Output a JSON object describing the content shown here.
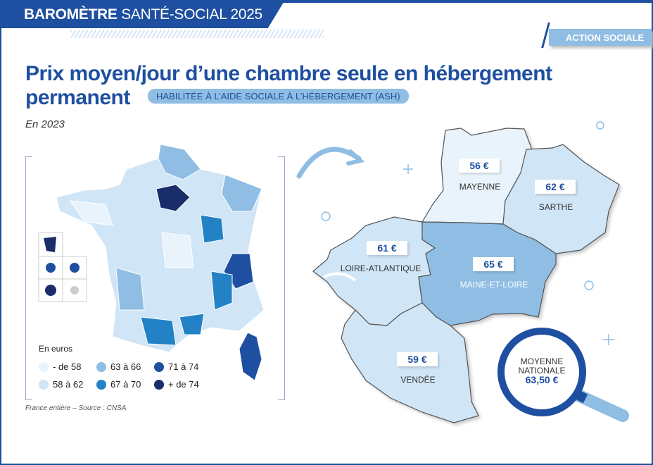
{
  "header": {
    "brand_bold": "BAROMÈTRE",
    "brand_rest": "SANTÉ-SOCIAL 2025",
    "section": "ACTION SOCIALE"
  },
  "title": {
    "line1": "Prix moyen/jour d’une chambre seule en hébergement",
    "line2": "permanent",
    "tag": "HABILITÉE À L’AIDE SOCIALE À L’HÉBERGEMENT (ASH)",
    "year": "En 2023"
  },
  "colors": {
    "lt58": "#e8f3fb",
    "r58_62": "#d0e5f6",
    "r63_66": "#8fbde3",
    "r67_70": "#2382c6",
    "r71_74": "#1e4fa0",
    "gt74": "#1a2d6b",
    "brand": "#1e4fa0"
  },
  "legend": {
    "title": "En euros",
    "items": [
      {
        "label": "- de 58",
        "color": "#e8f3fb"
      },
      {
        "label": "58 à 62",
        "color": "#d0e5f6"
      },
      {
        "label": "63 à 66",
        "color": "#8fbde3"
      },
      {
        "label": "67 à 70",
        "color": "#2382c6"
      },
      {
        "label": "71 à 74",
        "color": "#1e4fa0"
      },
      {
        "label": "+ de 74",
        "color": "#1a2d6b"
      }
    ]
  },
  "source": "France entière – Source : CNSA",
  "departments": [
    {
      "name": "MAYENNE",
      "price": "56 €",
      "value": 56
    },
    {
      "name": "SARTHE",
      "price": "62 €",
      "value": 62
    },
    {
      "name": "LOIRE-ATLANTIQUE",
      "price": "61 €",
      "value": 61
    },
    {
      "name": "MAINE-ET-LOIRE",
      "price": "65 €",
      "value": 65
    },
    {
      "name": "VENDÉE",
      "price": "59 €",
      "value": 59
    }
  ],
  "national": {
    "line1": "MOYENNE",
    "line2": "NATIONALE",
    "value": "63,50 €"
  }
}
